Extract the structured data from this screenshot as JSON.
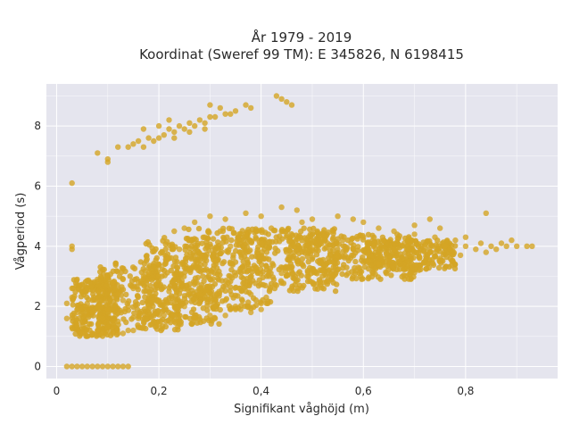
{
  "chart_data": {
    "type": "scatter",
    "title": "År 1979 - 2019",
    "subtitle": "Koordinat (Sweref 99 TM): E 345826, N 6198415",
    "xlabel": "Signifikant våghöjd (m)",
    "ylabel": "Vågperiod (s)",
    "xlim": [
      -0.02,
      0.98
    ],
    "ylim": [
      -0.4,
      9.4
    ],
    "x_ticks": [
      0,
      0.2,
      0.4,
      0.6,
      0.8
    ],
    "x_tick_labels": [
      "0",
      "0,2",
      "0,4",
      "0,6",
      "0,8"
    ],
    "y_ticks": [
      0,
      2,
      4,
      6,
      8
    ],
    "y_tick_labels": [
      "0",
      "2",
      "4",
      "6",
      "8"
    ],
    "grid": true,
    "legend": "none",
    "colors": {
      "marker": "#d4a524",
      "plot_background": "#e5e5ee",
      "grid": "#ffffff"
    },
    "series": [
      {
        "points": [
          [
            0.02,
            0
          ],
          [
            0.03,
            0
          ],
          [
            0.04,
            0
          ],
          [
            0.05,
            0
          ],
          [
            0.06,
            0
          ],
          [
            0.07,
            0
          ],
          [
            0.08,
            0
          ],
          [
            0.09,
            0
          ],
          [
            0.1,
            0
          ],
          [
            0.11,
            0
          ],
          [
            0.12,
            0
          ],
          [
            0.13,
            0
          ],
          [
            0.14,
            0
          ],
          [
            0.02,
            1.6
          ],
          [
            0.03,
            1.3
          ],
          [
            0.04,
            1.4
          ],
          [
            0.05,
            1.5
          ],
          [
            0.06,
            1.3
          ],
          [
            0.07,
            1.8
          ],
          [
            0.08,
            2.0
          ],
          [
            0.09,
            1.6
          ],
          [
            0.1,
            1.9
          ],
          [
            0.11,
            2.3
          ],
          [
            0.12,
            2.4
          ],
          [
            0.13,
            2.2
          ],
          [
            0.14,
            2.0
          ],
          [
            0.03,
            2.6
          ],
          [
            0.05,
            2.7
          ],
          [
            0.07,
            2.2
          ],
          [
            0.09,
            2.5
          ],
          [
            0.11,
            2.8
          ],
          [
            0.13,
            2.9
          ],
          [
            0.15,
            2.6
          ],
          [
            0.04,
            1.8
          ],
          [
            0.06,
            2.1
          ],
          [
            0.08,
            1.2
          ],
          [
            0.1,
            1.3
          ],
          [
            0.12,
            1.5
          ],
          [
            0.03,
            2.3
          ],
          [
            0.06,
            2.6
          ],
          [
            0.08,
            2.9
          ],
          [
            0.1,
            3.0
          ],
          [
            0.12,
            1.1
          ],
          [
            0.14,
            1.2
          ],
          [
            0.16,
            2.8
          ],
          [
            0.16,
            1.6
          ],
          [
            0.17,
            3.0
          ],
          [
            0.18,
            3.1
          ],
          [
            0.18,
            2.0
          ],
          [
            0.19,
            1.5
          ],
          [
            0.03,
            3.9
          ],
          [
            0.03,
            4.0
          ],
          [
            0.03,
            6.1
          ],
          [
            0.02,
            2.1
          ],
          [
            0.04,
            2.9
          ],
          [
            0.05,
            1.1
          ],
          [
            0.07,
            1.1
          ],
          [
            0.09,
            1.1
          ],
          [
            0.11,
            1.1
          ],
          [
            0.13,
            1.1
          ],
          [
            0.15,
            1.2
          ],
          [
            0.17,
            1.3
          ],
          [
            0.2,
            1.4
          ],
          [
            0.2,
            2.2
          ],
          [
            0.2,
            3.0
          ],
          [
            0.2,
            3.4
          ],
          [
            0.21,
            1.7
          ],
          [
            0.22,
            2.5
          ],
          [
            0.22,
            3.6
          ],
          [
            0.23,
            1.5
          ],
          [
            0.24,
            2.8
          ],
          [
            0.24,
            3.9
          ],
          [
            0.25,
            2.0
          ],
          [
            0.26,
            3.2
          ],
          [
            0.26,
            4.2
          ],
          [
            0.27,
            1.6
          ],
          [
            0.28,
            2.4
          ],
          [
            0.28,
            3.7
          ],
          [
            0.29,
            4.3
          ],
          [
            0.3,
            1.7
          ],
          [
            0.3,
            2.9
          ],
          [
            0.31,
            3.5
          ],
          [
            0.32,
            4.5
          ],
          [
            0.33,
            2.2
          ],
          [
            0.34,
            3.0
          ],
          [
            0.34,
            4.0
          ],
          [
            0.35,
            1.9
          ],
          [
            0.36,
            2.6
          ],
          [
            0.36,
            3.8
          ],
          [
            0.37,
            4.4
          ],
          [
            0.38,
            2.4
          ],
          [
            0.39,
            3.3
          ],
          [
            0.4,
            4.1
          ],
          [
            0.4,
            2.1
          ],
          [
            0.41,
            3.6
          ],
          [
            0.42,
            4.6
          ],
          [
            0.43,
            2.7
          ],
          [
            0.44,
            3.1
          ],
          [
            0.45,
            4.3
          ],
          [
            0.46,
            2.6
          ],
          [
            0.47,
            3.5
          ],
          [
            0.48,
            4.8
          ],
          [
            0.49,
            3.0
          ],
          [
            0.5,
            3.9
          ],
          [
            0.5,
            2.8
          ],
          [
            0.51,
            4.5
          ],
          [
            0.52,
            3.2
          ],
          [
            0.53,
            4.1
          ],
          [
            0.54,
            3.0
          ],
          [
            0.55,
            3.7
          ],
          [
            0.56,
            4.2
          ],
          [
            0.57,
            3.1
          ],
          [
            0.58,
            3.9
          ],
          [
            0.59,
            3.3
          ],
          [
            0.6,
            4.3
          ],
          [
            0.61,
            3.5
          ],
          [
            0.62,
            4.0
          ],
          [
            0.63,
            3.4
          ],
          [
            0.64,
            4.2
          ],
          [
            0.65,
            3.6
          ],
          [
            0.66,
            3.9
          ],
          [
            0.67,
            3.5
          ],
          [
            0.68,
            4.1
          ],
          [
            0.69,
            3.7
          ],
          [
            0.7,
            4.4
          ],
          [
            0.71,
            3.6
          ],
          [
            0.72,
            4.0
          ],
          [
            0.73,
            3.8
          ],
          [
            0.74,
            4.3
          ],
          [
            0.75,
            3.6
          ],
          [
            0.76,
            4.0
          ],
          [
            0.77,
            3.9
          ],
          [
            0.78,
            4.2
          ],
          [
            0.79,
            3.7
          ],
          [
            0.8,
            4.0
          ],
          [
            0.82,
            3.9
          ],
          [
            0.83,
            4.1
          ],
          [
            0.84,
            3.8
          ],
          [
            0.85,
            4.0
          ],
          [
            0.86,
            3.9
          ],
          [
            0.87,
            4.1
          ],
          [
            0.88,
            4.0
          ],
          [
            0.89,
            4.2
          ],
          [
            0.9,
            4.0
          ],
          [
            0.92,
            4.0
          ],
          [
            0.93,
            4.0
          ],
          [
            0.84,
            5.1
          ],
          [
            0.8,
            4.3
          ],
          [
            0.75,
            4.6
          ],
          [
            0.73,
            4.9
          ],
          [
            0.7,
            4.7
          ],
          [
            0.66,
            4.5
          ],
          [
            0.63,
            4.6
          ],
          [
            0.6,
            4.8
          ],
          [
            0.58,
            4.9
          ],
          [
            0.55,
            5.0
          ],
          [
            0.5,
            4.9
          ],
          [
            0.47,
            5.2
          ],
          [
            0.44,
            5.3
          ],
          [
            0.4,
            5.0
          ],
          [
            0.37,
            5.1
          ],
          [
            0.33,
            4.9
          ],
          [
            0.3,
            5.0
          ],
          [
            0.27,
            4.8
          ],
          [
            0.25,
            4.6
          ],
          [
            0.23,
            4.5
          ],
          [
            0.31,
            1.6
          ],
          [
            0.33,
            1.7
          ],
          [
            0.34,
            1.9
          ],
          [
            0.36,
            1.9
          ],
          [
            0.38,
            1.8
          ],
          [
            0.4,
            1.9
          ],
          [
            0.35,
            2.0
          ],
          [
            0.41,
            2.3
          ],
          [
            0.08,
            7.1
          ],
          [
            0.1,
            6.9
          ],
          [
            0.1,
            6.8
          ],
          [
            0.12,
            7.3
          ],
          [
            0.14,
            7.3
          ],
          [
            0.15,
            7.4
          ],
          [
            0.16,
            7.5
          ],
          [
            0.17,
            7.3
          ],
          [
            0.17,
            7.9
          ],
          [
            0.18,
            7.6
          ],
          [
            0.19,
            7.5
          ],
          [
            0.2,
            7.6
          ],
          [
            0.21,
            7.7
          ],
          [
            0.22,
            7.9
          ],
          [
            0.22,
            8.2
          ],
          [
            0.23,
            7.8
          ],
          [
            0.24,
            8.0
          ],
          [
            0.25,
            7.9
          ],
          [
            0.26,
            8.1
          ],
          [
            0.27,
            8.0
          ],
          [
            0.28,
            8.2
          ],
          [
            0.29,
            8.1
          ],
          [
            0.3,
            8.3
          ],
          [
            0.3,
            8.7
          ],
          [
            0.31,
            8.3
          ],
          [
            0.32,
            8.6
          ],
          [
            0.33,
            8.4
          ],
          [
            0.34,
            8.4
          ],
          [
            0.35,
            8.5
          ],
          [
            0.37,
            8.7
          ],
          [
            0.38,
            8.6
          ],
          [
            0.43,
            9.0
          ],
          [
            0.44,
            8.9
          ],
          [
            0.45,
            8.8
          ],
          [
            0.46,
            8.7
          ],
          [
            0.2,
            8.0
          ],
          [
            0.23,
            7.6
          ],
          [
            0.26,
            7.8
          ],
          [
            0.29,
            7.9
          ]
        ]
      }
    ],
    "dense_regions": [
      {
        "x": [
          0.03,
          0.12
        ],
        "y": [
          1.0,
          2.9
        ]
      },
      {
        "x": [
          0.08,
          0.25
        ],
        "y": [
          1.2,
          3.5
        ]
      },
      {
        "x": [
          0.17,
          0.32
        ],
        "y": [
          1.4,
          4.3
        ]
      },
      {
        "x": [
          0.25,
          0.42
        ],
        "y": [
          1.9,
          4.6
        ]
      },
      {
        "x": [
          0.35,
          0.55
        ],
        "y": [
          2.5,
          4.6
        ]
      },
      {
        "x": [
          0.45,
          0.7
        ],
        "y": [
          2.9,
          4.4
        ]
      },
      {
        "x": [
          0.6,
          0.78
        ],
        "y": [
          3.2,
          4.2
        ]
      }
    ]
  }
}
